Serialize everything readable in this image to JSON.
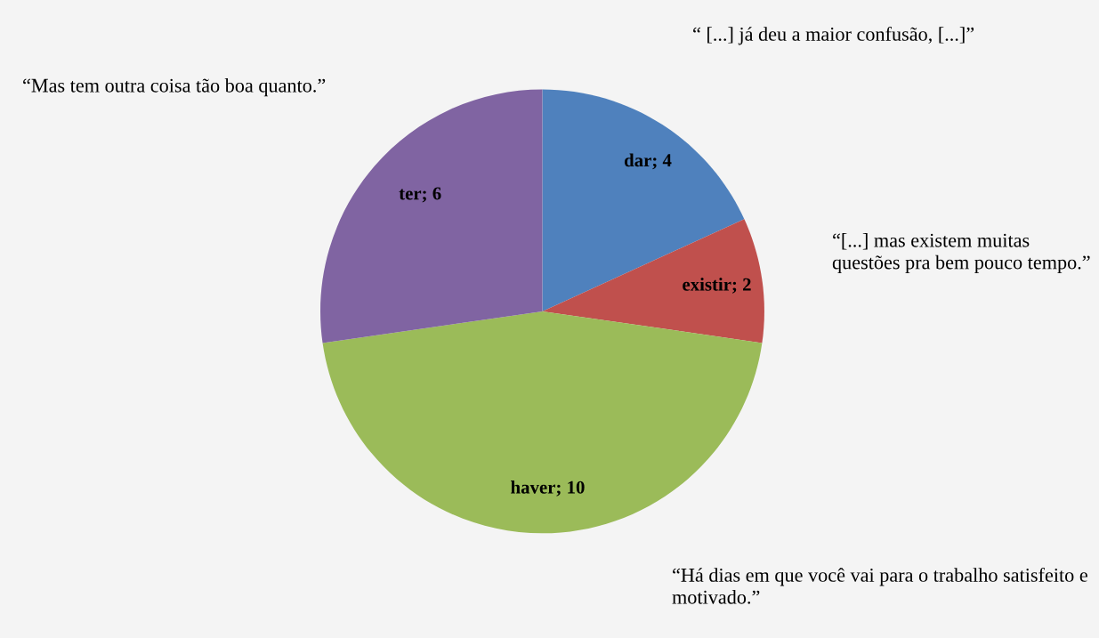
{
  "chart_data": {
    "type": "pie",
    "categories": [
      "dar",
      "existir",
      "haver",
      "ter"
    ],
    "values": [
      4,
      2,
      10,
      6
    ],
    "colors": [
      "#4f81bd",
      "#c0504d",
      "#9bbb59",
      "#8064a2"
    ],
    "value_labels": [
      "; 4",
      "; 2",
      "; 10",
      "; 6"
    ],
    "annotations": [
      "“ [...] já deu a maior confusão, [...]”",
      "“[...] mas existem muitas questões pra bem pouco tempo.”",
      "“Há dias em que você vai para o trabalho satisfeito e motivado.”",
      "“Mas tem outra coisa tão boa quanto.”"
    ]
  }
}
